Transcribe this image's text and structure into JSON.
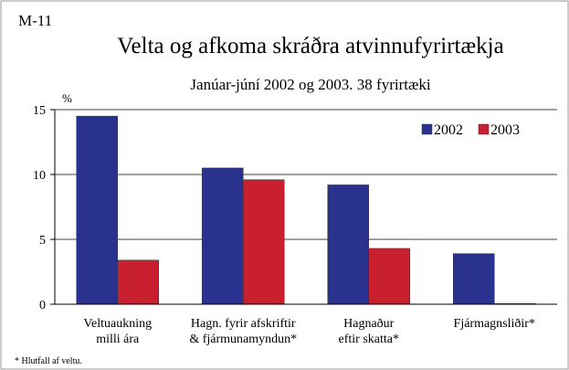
{
  "chart_data": {
    "type": "bar",
    "code": "M-11",
    "title": "Velta og afkoma skráðra atvinnufyrirtækja",
    "subtitle": "Janúar-júní 2002 og 2003. 38 fyrirtæki",
    "y_label": "%",
    "footnote": "* Hlutfall af veltu.",
    "categories": [
      [
        "Veltuaukning",
        "milli ára"
      ],
      [
        "Hagn. fyrir afskriftir",
        "& fjármunamyndun*"
      ],
      [
        "Hagnaður",
        "eftir skatta*"
      ],
      [
        "Fjármagnsliðir*"
      ]
    ],
    "series": [
      {
        "name": "2002",
        "color": "#2a3290",
        "values": [
          14.5,
          10.5,
          9.2,
          3.9
        ]
      },
      {
        "name": "2003",
        "color": "#c8202e",
        "values": [
          3.4,
          9.6,
          4.3,
          0.05
        ]
      }
    ],
    "ylim": [
      0,
      15
    ],
    "yticks": [
      0,
      5,
      10,
      15
    ],
    "grid": true,
    "legend": "upper right"
  }
}
